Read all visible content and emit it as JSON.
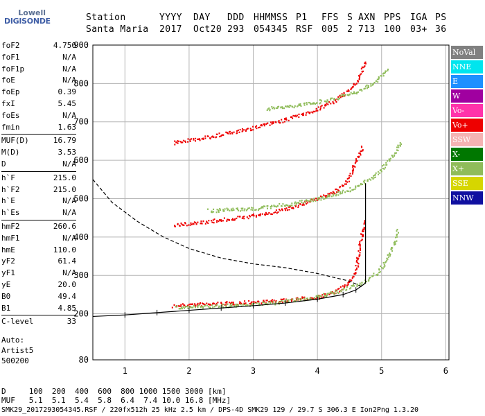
{
  "logo": {
    "line1": "Lowell",
    "line2": "DIGISONDE"
  },
  "header": {
    "labels": [
      "Station",
      "YYYY",
      "DAY",
      "DDD",
      "HHMMSS",
      "P1",
      "FFS",
      "S",
      "AXN",
      "PPS",
      "IGA",
      "PS"
    ],
    "values": [
      "Santa Maria",
      "2017",
      "Oct20",
      "293",
      "054345",
      "RSF",
      "005",
      "2",
      "713",
      "100",
      "03+",
      "36"
    ]
  },
  "params": [
    {
      "k": "foF2",
      "v": "4.750"
    },
    {
      "k": "foF1",
      "v": "N/A"
    },
    {
      "k": "foF1p",
      "v": "N/A"
    },
    {
      "k": "foE",
      "v": "N/A"
    },
    {
      "k": "foEp",
      "v": "0.39"
    },
    {
      "k": "fxI",
      "v": "5.45"
    },
    {
      "k": "foEs",
      "v": "N/A"
    },
    {
      "k": "fmin",
      "v": "1.63"
    },
    {
      "sep": true
    },
    {
      "k": "MUF(D)",
      "v": "16.79"
    },
    {
      "k": "M(D)",
      "v": "3.53"
    },
    {
      "k": "D",
      "v": "N/A"
    },
    {
      "sep": true
    },
    {
      "k": "h`F",
      "v": "215.0"
    },
    {
      "k": "h`F2",
      "v": "215.0"
    },
    {
      "k": "h`E",
      "v": "N/A"
    },
    {
      "k": "h`Es",
      "v": "N/A"
    },
    {
      "sep": true
    },
    {
      "k": "hmF2",
      "v": "260.6"
    },
    {
      "k": "hmF1",
      "v": "N/A"
    },
    {
      "k": "hmE",
      "v": "110.0"
    },
    {
      "k": "yF2",
      "v": "61.4"
    },
    {
      "k": "yF1",
      "v": "N/A"
    },
    {
      "k": "yE",
      "v": "20.0"
    },
    {
      "k": "B0",
      "v": "49.4"
    },
    {
      "k": "B1",
      "v": "4.85"
    },
    {
      "sep": true
    },
    {
      "k": "C-level",
      "v": "33"
    }
  ],
  "auto": [
    "Auto:",
    "Artist5",
    "500200"
  ],
  "legend": [
    {
      "label": "NoVal",
      "color": "#808080"
    },
    {
      "label": "NNE",
      "color": "#00e5ee"
    },
    {
      "label": "E",
      "color": "#1e90ff"
    },
    {
      "label": "W",
      "color": "#a000a0"
    },
    {
      "label": "Vo-",
      "color": "#ff33aa"
    },
    {
      "label": "Vo+",
      "color": "#ee0000"
    },
    {
      "label": "SSW",
      "color": "#f5b3b3"
    },
    {
      "label": "X-",
      "color": "#007700"
    },
    {
      "label": "X+",
      "color": "#8fbc5a"
    },
    {
      "label": "SSE",
      "color": "#d6d600"
    },
    {
      "label": "NNW",
      "color": "#1010a0"
    }
  ],
  "footer": {
    "line1": "D     100  200  400  600  800 1000 1500 3000 [km]",
    "line2": "MUF   5.1  5.1  5.4  5.8  6.4  7.4 10.0 16.8 [MHz]",
    "line3": "SMK29_2017293054345.RSF / 220fx512h 25 kHz 2.5 km / DPS-4D SMK29 129 / 29.7 S 306.3 E Ion2Png 1.3.20"
  },
  "chart_data": {
    "type": "scatter",
    "x_ticks": [
      1,
      2,
      3,
      4,
      5,
      6
    ],
    "y_ticks": [
      80,
      200,
      300,
      400,
      500,
      600,
      700,
      800,
      900
    ],
    "xlim": [
      0.5,
      6.05
    ],
    "ylim": [
      80,
      900
    ],
    "grid": true,
    "series": [
      {
        "name": "Vo+",
        "color": "#ee0000",
        "x": [
          1.75,
          2.0,
          2.5,
          3.0,
          3.5,
          4.0,
          4.3,
          4.5,
          4.6,
          4.65,
          4.7,
          4.72
        ],
        "y": [
          222,
          225,
          228,
          232,
          236,
          245,
          260,
          285,
          320,
          370,
          420,
          450
        ]
      },
      {
        "name": "X+",
        "color": "#8fbc5a",
        "x": [
          1.8,
          2.5,
          3.2,
          3.8,
          4.3,
          4.7,
          4.95,
          5.1,
          5.2,
          5.25
        ],
        "y": [
          218,
          222,
          228,
          240,
          258,
          282,
          310,
          350,
          390,
          420
        ]
      },
      {
        "name": "Vo+ (2F2)",
        "color": "#ee0000",
        "x": [
          1.75,
          2.2,
          2.8,
          3.3,
          3.8,
          4.2,
          4.4,
          4.5,
          4.6,
          4.7
        ],
        "y": [
          432,
          440,
          452,
          465,
          490,
          515,
          535,
          560,
          600,
          640
        ]
      },
      {
        "name": "X+ (2F2)",
        "color": "#8fbc5a",
        "x": [
          2.3,
          3.0,
          3.6,
          4.1,
          4.5,
          4.8,
          5.0,
          5.2,
          5.3
        ],
        "y": [
          470,
          475,
          488,
          505,
          525,
          550,
          580,
          620,
          650
        ]
      },
      {
        "name": "Vo+ (3F2)",
        "color": "#ee0000",
        "x": [
          1.75,
          2.3,
          2.9,
          3.4,
          3.9,
          4.3,
          4.6,
          4.75
        ],
        "y": [
          647,
          662,
          682,
          702,
          728,
          760,
          800,
          860
        ]
      },
      {
        "name": "X+ (3F2)",
        "color": "#8fbc5a",
        "x": [
          3.2,
          3.7,
          4.2,
          4.6,
          4.9,
          5.1
        ],
        "y": [
          735,
          745,
          760,
          780,
          805,
          840
        ]
      }
    ],
    "profile": {
      "x": [
        0.5,
        1.0,
        1.5,
        2.0,
        2.5,
        3.0,
        3.5,
        4.0,
        4.4,
        4.6,
        4.75,
        4.75
      ],
      "y": [
        193,
        197,
        203,
        209,
        215,
        221,
        228,
        238,
        250,
        262,
        280,
        540
      ]
    },
    "muf_curve": {
      "x": [
        0.5,
        0.8,
        1.2,
        1.6,
        2.0,
        2.5,
        3.0,
        3.5,
        4.0,
        4.5,
        4.7
      ],
      "y": [
        550,
        490,
        440,
        400,
        370,
        345,
        330,
        320,
        305,
        285,
        270
      ]
    }
  }
}
